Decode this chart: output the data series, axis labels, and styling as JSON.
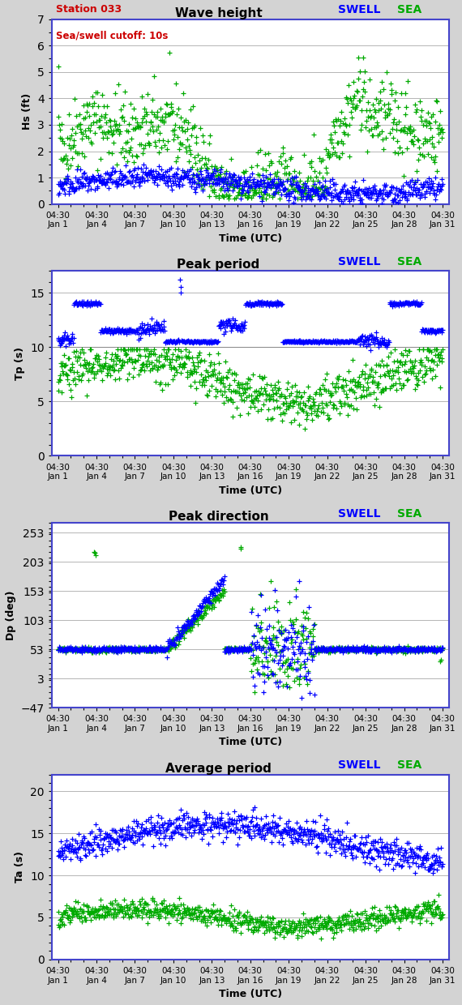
{
  "title1": "Wave height",
  "title2": "Peak period",
  "title3": "Peak direction",
  "title4": "Average period",
  "station_text": "Station 033",
  "cutoff_text": "Sea/swell cutoff: 10s",
  "ylabel1": "Hs (ft)",
  "ylabel2": "Tp (s)",
  "ylabel3": "Dp (deg)",
  "ylabel4": "Ta (s)",
  "xlabel": "Time (UTC)",
  "swell_color": "#0000ff",
  "sea_color": "#00aa00",
  "bg_color": "#d3d3d3",
  "plot_bg": "#ffffff",
  "border_color": "#4444cc",
  "yticks1": [
    0.0,
    1.0,
    2.0,
    3.0,
    4.0,
    5.0,
    6.0,
    7.0
  ],
  "ylim1": [
    0.0,
    7.0
  ],
  "yticks2": [
    0,
    5,
    10,
    15
  ],
  "ylim2": [
    0,
    17
  ],
  "yticks3": [
    -47,
    3,
    53,
    103,
    153,
    203,
    253
  ],
  "ylim3": [
    -47,
    270
  ],
  "yticks4": [
    0,
    5,
    10,
    15,
    20
  ],
  "ylim4": [
    0,
    22
  ],
  "num_days": 30
}
